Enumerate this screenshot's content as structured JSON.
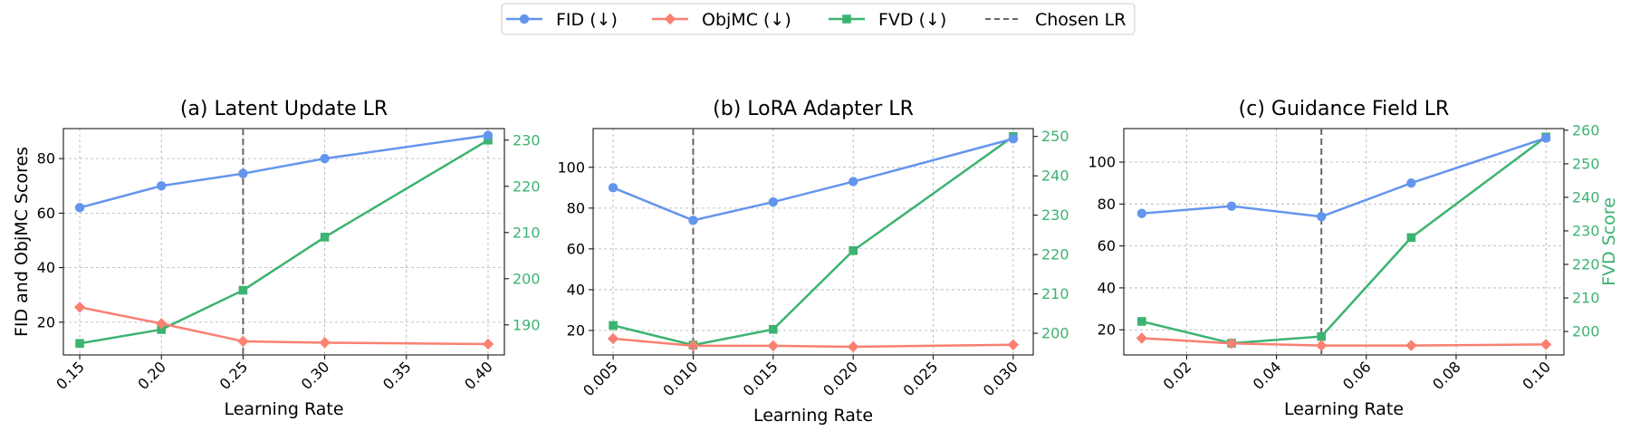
{
  "colors": {
    "fid": "#6495ED",
    "objmc": "#FA8072",
    "fvd": "#3CB371",
    "chosen": "#666666",
    "grid": "#b0b0b0"
  },
  "legend": {
    "items": [
      {
        "key": "fid",
        "label": "FID (↓)",
        "marker": "circle"
      },
      {
        "key": "objmc",
        "label": "ObjMC (↓)",
        "marker": "diamond"
      },
      {
        "key": "fvd",
        "label": "FVD (↓)",
        "marker": "square"
      },
      {
        "key": "chosen",
        "label": "Chosen LR",
        "marker": "dashed"
      }
    ]
  },
  "chart_data": [
    {
      "type": "line",
      "title": "(a) Latent Update LR",
      "xlabel": "Learning Rate",
      "ylabel_left": "FID and ObjMC Scores",
      "ylabel_right": "",
      "x": [
        0.15,
        0.2,
        0.25,
        0.3,
        0.4
      ],
      "xlim": [
        0.14,
        0.41
      ],
      "xticks": [
        "0.15",
        "0.20",
        "0.25",
        "0.30",
        "0.35",
        "0.40"
      ],
      "xtick_values": [
        0.15,
        0.2,
        0.25,
        0.3,
        0.35,
        0.4
      ],
      "ylim_left": [
        8,
        91
      ],
      "yticks_left": [
        20,
        40,
        60,
        80
      ],
      "ylim_right": [
        183.5,
        232.5
      ],
      "yticks_right": [
        190,
        200,
        210,
        220,
        230
      ],
      "chosen_lr": 0.25,
      "grid": true,
      "series": [
        {
          "name": "FID (↓)",
          "axis": "left",
          "marker": "circle",
          "values": [
            62,
            70,
            74.5,
            80,
            88.5
          ]
        },
        {
          "name": "ObjMC (↓)",
          "axis": "left",
          "marker": "diamond",
          "values": [
            25.5,
            19.5,
            13,
            12.5,
            12
          ]
        },
        {
          "name": "FVD (↓)",
          "axis": "right",
          "marker": "square",
          "values": [
            186,
            189,
            197.5,
            209,
            230
          ]
        }
      ]
    },
    {
      "type": "line",
      "title": "(b) LoRA Adapter LR",
      "xlabel": "Learning Rate",
      "ylabel_left": "",
      "ylabel_right": "",
      "x": [
        0.005,
        0.01,
        0.015,
        0.02,
        0.03
      ],
      "xlim": [
        0.00375,
        0.03125
      ],
      "xticks": [
        "0.005",
        "0.010",
        "0.015",
        "0.020",
        "0.025",
        "0.030"
      ],
      "xtick_values": [
        0.005,
        0.01,
        0.015,
        0.02,
        0.025,
        0.03
      ],
      "ylim_left": [
        8,
        119
      ],
      "yticks_left": [
        20,
        40,
        60,
        80,
        100
      ],
      "ylim_right": [
        194.5,
        252
      ],
      "yticks_right": [
        200,
        210,
        220,
        230,
        240,
        250
      ],
      "chosen_lr": 0.01,
      "grid": true,
      "series": [
        {
          "name": "FID (↓)",
          "axis": "left",
          "marker": "circle",
          "values": [
            90,
            74,
            83,
            93,
            114
          ]
        },
        {
          "name": "ObjMC (↓)",
          "axis": "left",
          "marker": "diamond",
          "values": [
            16,
            12.5,
            12.5,
            12,
            13
          ]
        },
        {
          "name": "FVD (↓)",
          "axis": "right",
          "marker": "square",
          "values": [
            202,
            197,
            201,
            221,
            250
          ]
        }
      ]
    },
    {
      "type": "line",
      "title": "(c) Guidance Field LR",
      "xlabel": "Learning Rate",
      "ylabel_left": "",
      "ylabel_right": "FVD Score",
      "x": [
        0.01,
        0.03,
        0.05,
        0.07,
        0.1
      ],
      "xlim": [
        0.006,
        0.104
      ],
      "xticks": [
        "0.02",
        "0.04",
        "0.06",
        "0.08",
        "0.10"
      ],
      "xtick_values": [
        0.02,
        0.04,
        0.06,
        0.08,
        0.1
      ],
      "ylim_left": [
        8,
        116
      ],
      "yticks_left": [
        20,
        40,
        60,
        80,
        100
      ],
      "ylim_right": [
        193,
        260.5
      ],
      "yticks_right": [
        200,
        210,
        220,
        230,
        240,
        250,
        260
      ],
      "chosen_lr": 0.05,
      "grid": true,
      "series": [
        {
          "name": "FID (↓)",
          "axis": "left",
          "marker": "circle",
          "values": [
            75.5,
            79,
            74,
            90,
            111.5
          ]
        },
        {
          "name": "ObjMC (↓)",
          "axis": "left",
          "marker": "diamond",
          "values": [
            16,
            13.5,
            12.5,
            12.5,
            13
          ]
        },
        {
          "name": "FVD (↓)",
          "axis": "right",
          "marker": "square",
          "values": [
            203,
            196.5,
            198.5,
            228,
            258
          ]
        }
      ]
    }
  ]
}
